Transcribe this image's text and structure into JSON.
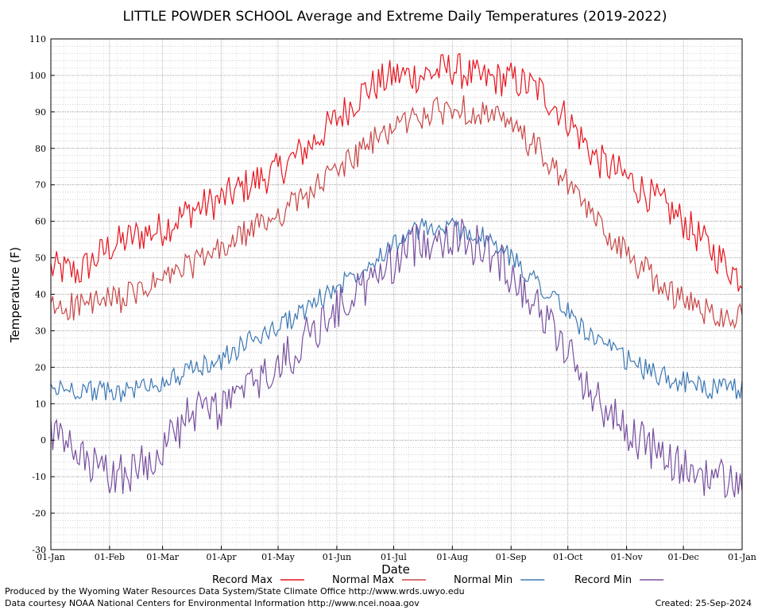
{
  "chart_data": {
    "type": "line",
    "title": "LITTLE POWDER SCHOOL Average and Extreme Daily Temperatures (2019-2022)",
    "xlabel": "Date",
    "ylabel": "Temperature (F)",
    "ylim": [
      -30,
      110
    ],
    "yticks": [
      -30,
      -20,
      -10,
      0,
      10,
      20,
      30,
      40,
      50,
      60,
      70,
      80,
      90,
      100,
      110
    ],
    "xlim_days": [
      0,
      365
    ],
    "month_ticks": [
      "01-Jan",
      "01-Feb",
      "01-Mar",
      "01-Apr",
      "01-May",
      "01-Jun",
      "01-Jul",
      "01-Aug",
      "01-Sep",
      "01-Oct",
      "01-Nov",
      "01-Dec",
      "01-Jan"
    ],
    "grid": true,
    "legend_position": "bottom",
    "x_days": [
      0,
      15,
      31,
      45,
      59,
      74,
      90,
      104,
      120,
      135,
      151,
      166,
      181,
      196,
      212,
      227,
      243,
      258,
      273,
      288,
      304,
      319,
      334,
      349,
      365
    ],
    "series": [
      {
        "name": "Record Max",
        "color": "#e8141e",
        "values": [
          47,
          46,
          53,
          56,
          58,
          63,
          66,
          70,
          74,
          80,
          88,
          96,
          100,
          100,
          102,
          99,
          99,
          96,
          88,
          77,
          72,
          66,
          60,
          52,
          44
        ]
      },
      {
        "name": "Normal Max",
        "color": "#c84646",
        "values": [
          36,
          37,
          38,
          40,
          44,
          48,
          52,
          57,
          62,
          67,
          74,
          80,
          86,
          89,
          91,
          90,
          86,
          79,
          70,
          60,
          51,
          44,
          38,
          35,
          34
        ]
      },
      {
        "name": "Normal Min",
        "color": "#3c78b4",
        "values": [
          14,
          14,
          13,
          14,
          16,
          19,
          22,
          27,
          31,
          36,
          42,
          48,
          54,
          58,
          58,
          56,
          50,
          43,
          35,
          27,
          22,
          18,
          16,
          14,
          14
        ]
      },
      {
        "name": "Record Min",
        "color": "#7850a0",
        "values": [
          2,
          -5,
          -10,
          -8,
          -2,
          7,
          9,
          14,
          20,
          28,
          36,
          42,
          49,
          55,
          56,
          53,
          46,
          36,
          24,
          11,
          3,
          -3,
          -8,
          -10,
          -12
        ]
      }
    ]
  },
  "footer": {
    "left1": "Produced by the Wyoming Water Resources Data System/State Climate Office http://www.wrds.uwyo.edu",
    "left2": "Data courtesy NOAA National Centers for Environmental Information http://www.ncei.noaa.gov",
    "created": "Created:  25-Sep-2024"
  }
}
